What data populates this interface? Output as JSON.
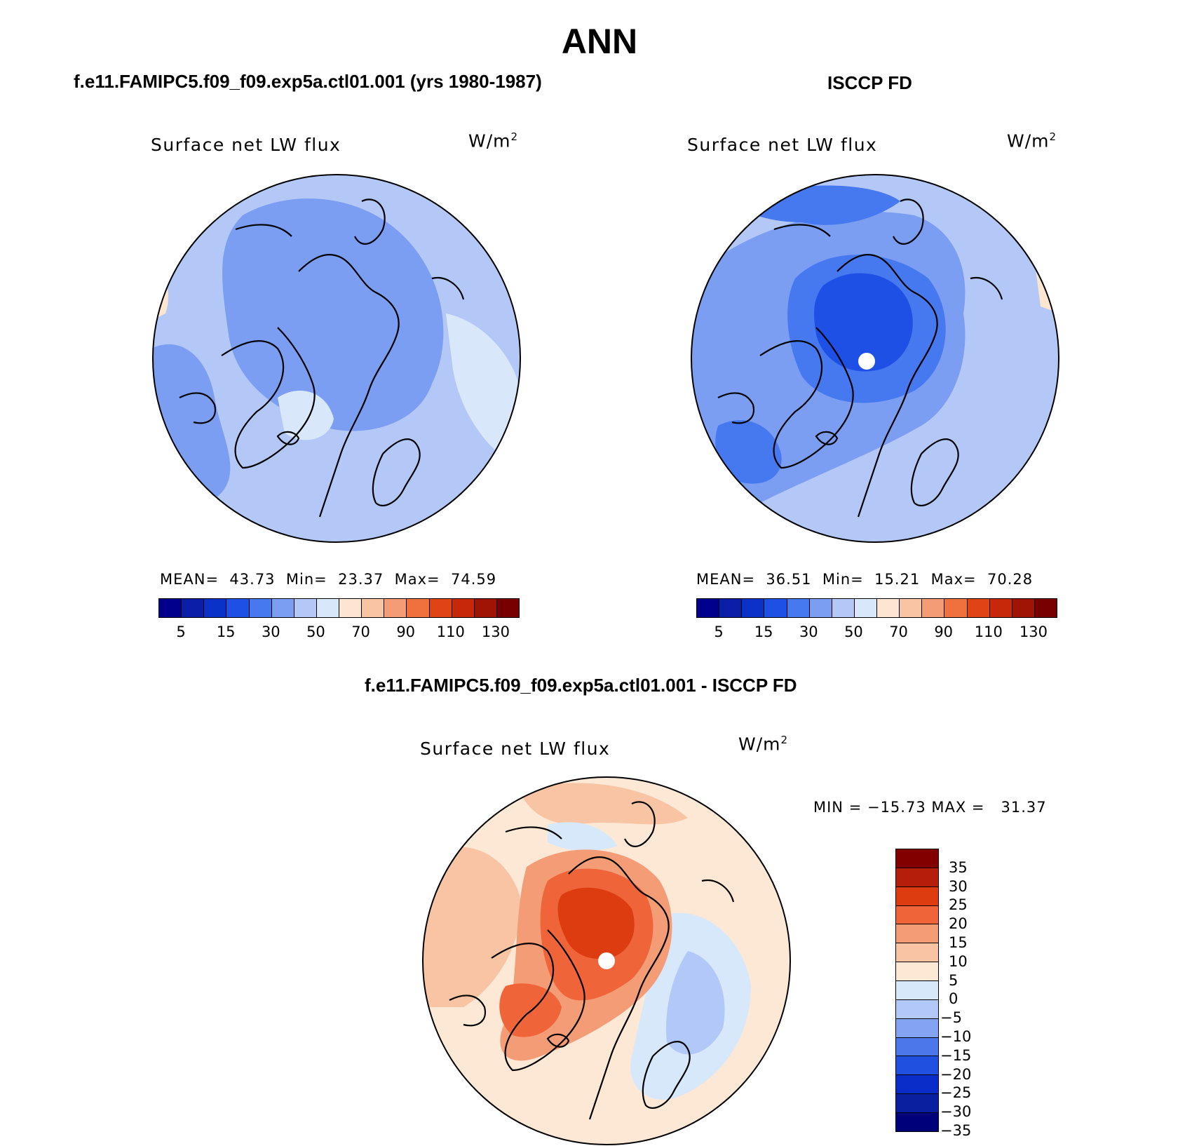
{
  "main_title": "ANN",
  "panels": [
    {
      "id": "model",
      "heading": "f.e11.FAMIPC5.f09_f09.exp5a.ctl01.001 (yrs 1980-1987)",
      "variable": "Surface net LW flux",
      "units": "W/m",
      "units_sup": "2",
      "stats": {
        "mean_label": "MEAN=",
        "mean": "43.73",
        "min_label": "Min=",
        "min": "23.37",
        "max_label": "Max=",
        "max": "74.59"
      }
    },
    {
      "id": "obs",
      "heading": "ISCCP FD",
      "variable": "Surface net LW flux",
      "units": "W/m",
      "units_sup": "2",
      "stats": {
        "mean_label": "MEAN=",
        "mean": "36.51",
        "min_label": "Min=",
        "min": "15.21",
        "max_label": "Max=",
        "max": "70.28"
      }
    },
    {
      "id": "diff",
      "heading": "f.e11.FAMIPC5.f09_f09.exp5a.ctl01.001 - ISCCP FD",
      "variable": "Surface net LW flux",
      "units": "W/m",
      "units_sup": "2",
      "stats_text": "MIN = −15.73 MAX =   31.37"
    }
  ],
  "abs_colorbar": {
    "colors": [
      "#00008c",
      "#0a1ea8",
      "#0a32c8",
      "#1e50e6",
      "#4678f0",
      "#7b9ef2",
      "#b4c8f8",
      "#d8e8fa",
      "#fce6d2",
      "#f8c4a4",
      "#f49c76",
      "#f0703e",
      "#e04414",
      "#c8280a",
      "#a01406",
      "#780000"
    ],
    "tick_labels": [
      "5",
      "15",
      "30",
      "50",
      "70",
      "90",
      "110",
      "130"
    ]
  },
  "diff_colorbar": {
    "colors_top_to_bottom": [
      "#820000",
      "#b41e0a",
      "#dc3c10",
      "#f0643a",
      "#f49c76",
      "#f8c4a4",
      "#fde8d6",
      "#d6e8fa",
      "#b2c8f8",
      "#82a4f2",
      "#4a78ea",
      "#2050e0",
      "#0a2cc8",
      "#0a1ea0",
      "#00007a"
    ],
    "tick_labels_top_to_bottom": [
      "35",
      "30",
      "25",
      "20",
      "15",
      "10",
      "5",
      "0",
      "−5",
      "−10",
      "−15",
      "−20",
      "−25",
      "−30",
      "−35"
    ]
  },
  "map_colors": {
    "model_base": "#b4c8f8",
    "model_mid": "#7b9ef2",
    "model_light": "#d8e8fa",
    "model_warm": "#fce6d2",
    "obs_base": "#b4c8f8",
    "obs_mid": "#7b9ef2",
    "obs_dark": "#4678f0",
    "obs_core": "#1e50e6",
    "diff_base": "#fde8d6",
    "diff_light_red": "#f8c4a4",
    "diff_mid_red": "#f49c76",
    "diff_red": "#f0643a",
    "diff_dark_red": "#dc3c10",
    "diff_blue": "#d6e8fa",
    "diff_mid_blue": "#b2c8f8",
    "coast": "#000000"
  }
}
